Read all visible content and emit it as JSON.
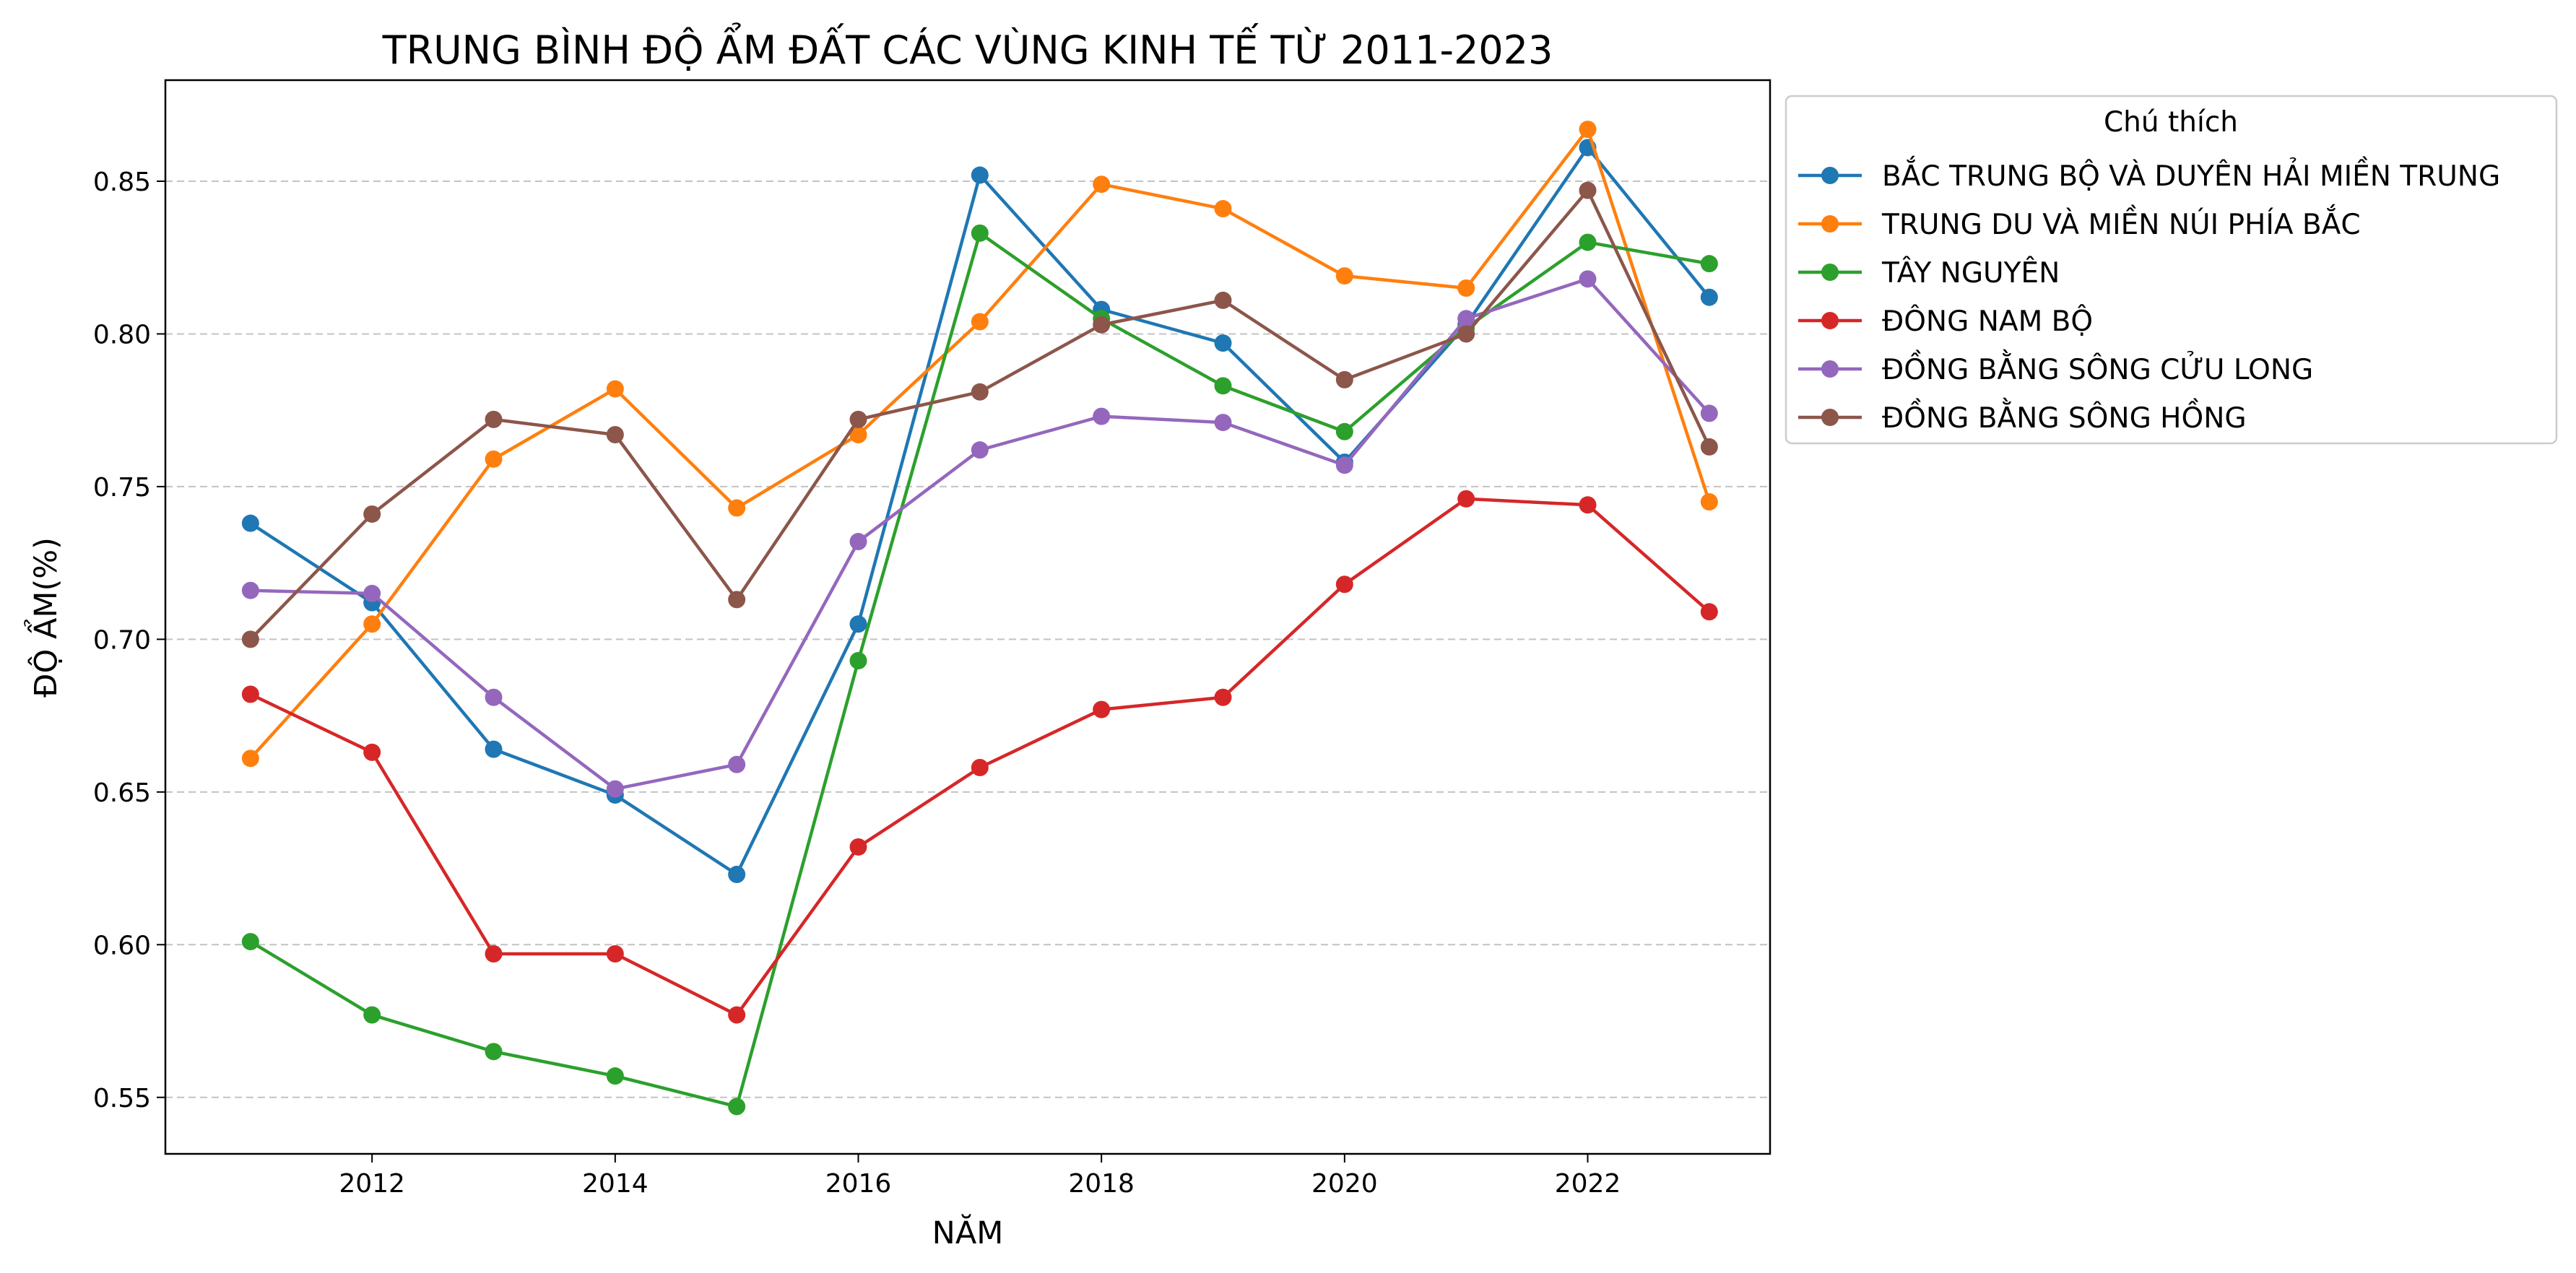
{
  "chart_data": {
    "type": "line",
    "title": "TRUNG BÌNH ĐỘ ẨM ĐẤT CÁC VÙNG KINH TẾ TỪ 2011-2023",
    "xlabel": "NĂM",
    "ylabel": "ĐỘ ẨM(%)",
    "x": [
      2011,
      2012,
      2013,
      2014,
      2015,
      2016,
      2017,
      2018,
      2019,
      2020,
      2021,
      2022,
      2023
    ],
    "xlim": [
      2010.3,
      2023.5
    ],
    "ylim": [
      0.5315,
      0.8831
    ],
    "xticks": [
      2012,
      2014,
      2016,
      2018,
      2020,
      2022
    ],
    "yticks": [
      0.55,
      0.6,
      0.65,
      0.7,
      0.75,
      0.8,
      0.85
    ],
    "ytick_labels": [
      "0.55",
      "0.60",
      "0.65",
      "0.70",
      "0.75",
      "0.80",
      "0.85"
    ],
    "grid": "y-dashed",
    "legend_title": "Chú thích",
    "legend_position": "outside-right-top",
    "series": [
      {
        "name": "BẮC TRUNG BỘ VÀ DUYÊN HẢI MIỀN TRUNG",
        "color": "#1f77b4",
        "values": [
          0.738,
          0.712,
          0.664,
          0.649,
          0.623,
          0.705,
          0.852,
          0.808,
          0.797,
          0.758,
          0.803,
          0.861,
          0.812
        ]
      },
      {
        "name": "TRUNG DU VÀ MIỀN NÚI PHÍA BẮC",
        "color": "#ff7f0e",
        "values": [
          0.661,
          0.705,
          0.759,
          0.782,
          0.743,
          0.767,
          0.804,
          0.849,
          0.841,
          0.819,
          0.815,
          0.867,
          0.745
        ]
      },
      {
        "name": "TÂY NGUYÊN",
        "color": "#2ca02c",
        "values": [
          0.601,
          0.577,
          0.565,
          0.557,
          0.547,
          0.693,
          0.833,
          0.805,
          0.783,
          0.768,
          0.802,
          0.83,
          0.823
        ]
      },
      {
        "name": "ĐÔNG NAM BỘ",
        "color": "#d62728",
        "values": [
          0.682,
          0.663,
          0.597,
          0.597,
          0.577,
          0.632,
          0.658,
          0.677,
          0.681,
          0.718,
          0.746,
          0.744,
          0.709
        ]
      },
      {
        "name": "ĐỒNG BẰNG SÔNG CỬU LONG",
        "color": "#9467bd",
        "values": [
          0.716,
          0.715,
          0.681,
          0.651,
          0.659,
          0.732,
          0.762,
          0.773,
          0.771,
          0.757,
          0.805,
          0.818,
          0.774
        ]
      },
      {
        "name": "ĐỒNG BẰNG SÔNG HỒNG",
        "color": "#8c564b",
        "values": [
          0.7,
          0.741,
          0.772,
          0.767,
          0.713,
          0.772,
          0.781,
          0.803,
          0.811,
          0.785,
          0.8,
          0.847,
          0.763
        ]
      }
    ]
  }
}
